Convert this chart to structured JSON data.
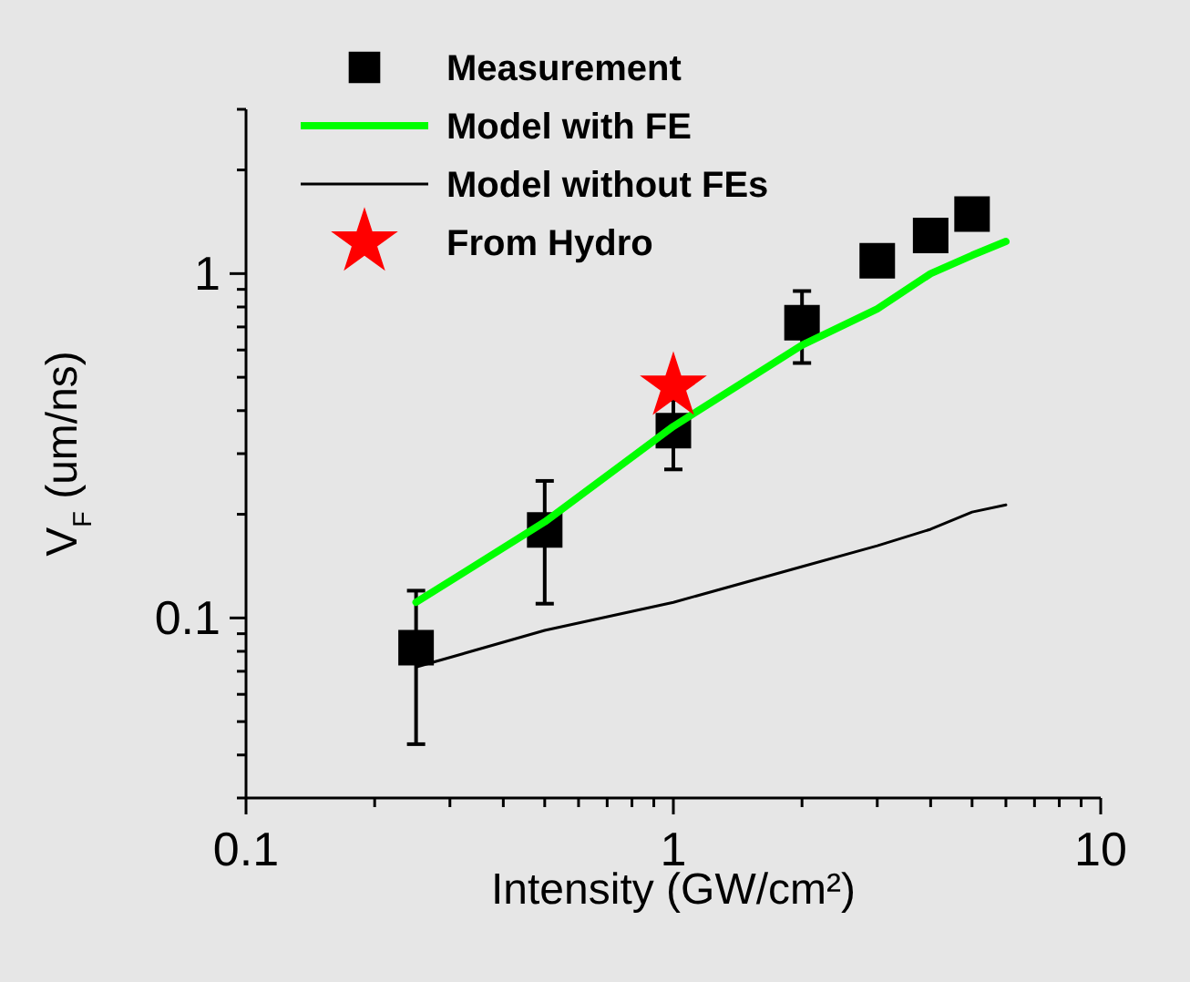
{
  "chart_data": {
    "type": "line",
    "xlabel": "Intensity (GW/cm²)",
    "ylabel": "V$_{F}$ (um/ns)",
    "log": "xy",
    "legend": "top left",
    "grid": false,
    "xlim": [
      0.1,
      10
    ],
    "xticks": [
      0.1,
      {
        "value": 0.2,
        "label": null
      },
      {
        "value": 0.3,
        "label": null
      },
      {
        "value": 0.4,
        "label": null
      },
      {
        "value": 0.5,
        "label": null
      },
      {
        "value": 0.6,
        "label": null
      },
      {
        "value": 0.7,
        "label": null
      },
      {
        "value": 0.8,
        "label": null
      },
      {
        "value": 0.9,
        "label": null
      },
      1,
      {
        "value": 2,
        "label": null
      },
      {
        "value": 3,
        "label": null
      },
      {
        "value": 4,
        "label": null
      },
      {
        "value": 5,
        "label": null
      },
      {
        "value": 6,
        "label": null
      },
      {
        "value": 7,
        "label": null
      },
      {
        "value": 8,
        "label": null
      },
      {
        "value": 9,
        "label": null
      },
      10
    ],
    "ylim": [
      0.03,
      3
    ],
    "yticks": [
      {
        "value": 0.03,
        "label": null
      },
      {
        "value": 0.04,
        "label": null
      },
      {
        "value": 0.05,
        "label": null
      },
      {
        "value": 0.06,
        "label": null
      },
      {
        "value": 0.07,
        "label": null
      },
      {
        "value": 0.08,
        "label": null
      },
      {
        "value": 0.09,
        "label": null
      },
      0.1,
      {
        "value": 0.2,
        "label": null
      },
      {
        "value": 0.3,
        "label": null
      },
      {
        "value": 0.4,
        "label": null
      },
      {
        "value": 0.5,
        "label": null
      },
      {
        "value": 0.6,
        "label": null
      },
      {
        "value": 0.7,
        "label": null
      },
      {
        "value": 0.8,
        "label": null
      },
      {
        "value": 0.9,
        "label": null
      },
      1,
      {
        "value": 2,
        "label": null
      },
      {
        "value": 3,
        "label": null
      }
    ],
    "series": [
      {
        "name": "Measurement",
        "type": "scatter",
        "marker": "square",
        "color": "#000000",
        "x": [
          0.25,
          0.5,
          1,
          2,
          3,
          4,
          5
        ],
        "values": [
          0.082,
          0.18,
          0.35,
          0.72,
          1.09,
          1.29,
          1.49
        ],
        "errors": [
          [
            0.043,
            0.12
          ],
          [
            0.11,
            0.25
          ],
          [
            0.27,
            0.43
          ],
          [
            0.55,
            0.89
          ],
          null,
          null,
          null
        ]
      },
      {
        "name": "Model with FE",
        "marker": "none",
        "color": "#00ff00",
        "x": [
          0.25,
          0.5,
          1,
          2,
          3,
          4,
          5,
          6
        ],
        "values": [
          0.111,
          0.19,
          0.36,
          0.62,
          0.79,
          1.0,
          1.13,
          1.24
        ]
      },
      {
        "name": "Model without FEs",
        "marker": "none",
        "color": "#000000",
        "x": [
          0.25,
          0.5,
          1,
          2,
          3,
          4,
          5,
          6
        ],
        "values": [
          0.072,
          0.092,
          0.111,
          0.141,
          0.162,
          0.181,
          0.203,
          0.213
        ]
      },
      {
        "name": "From Hydro",
        "type": "scatter",
        "marker": "star",
        "color": "#ff0000",
        "x": [
          1
        ],
        "values": [
          0.47
        ]
      }
    ]
  }
}
